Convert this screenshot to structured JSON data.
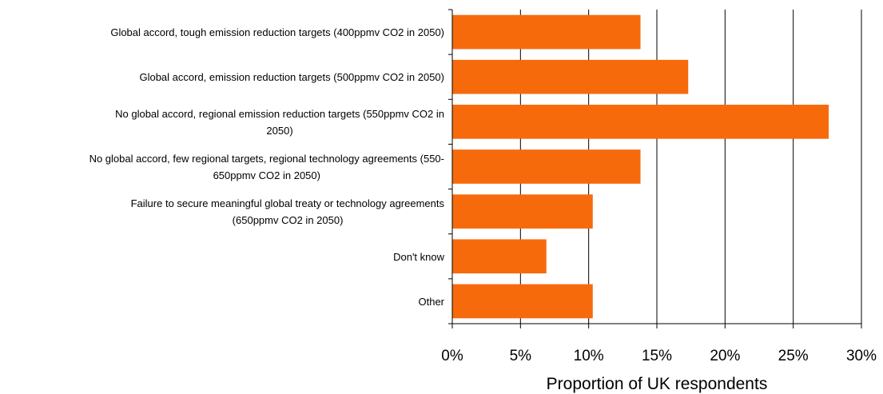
{
  "chart_data": {
    "type": "bar",
    "orientation": "horizontal",
    "categories": [
      [
        "Global accord, tough emission reduction targets (400ppmv CO2 in 2050)"
      ],
      [
        "Global accord, emission reduction targets (500ppmv CO2 in 2050)"
      ],
      [
        "No global accord, regional emission reduction targets (550ppmv CO2 in",
        "2050)"
      ],
      [
        "No global accord, few regional targets, regional technology agreements (550-",
        "650ppmv CO2 in 2050)"
      ],
      [
        "Failure to secure meaningful global treaty or technology agreements",
        "(650ppmv CO2 in 2050)"
      ],
      [
        "Don't know"
      ],
      [
        "Other"
      ]
    ],
    "values": [
      13.8,
      17.3,
      27.6,
      13.8,
      10.3,
      6.9,
      10.3
    ],
    "xlabel": "Proportion of UK respondents",
    "xlim": [
      0,
      30
    ],
    "xticks": [
      0,
      5,
      10,
      15,
      20,
      25,
      30
    ],
    "xtick_labels": [
      "0%",
      "5%",
      "10%",
      "15%",
      "20%",
      "25%",
      "30%"
    ],
    "grid": "vertical",
    "bar_color": "#f76a0c"
  }
}
